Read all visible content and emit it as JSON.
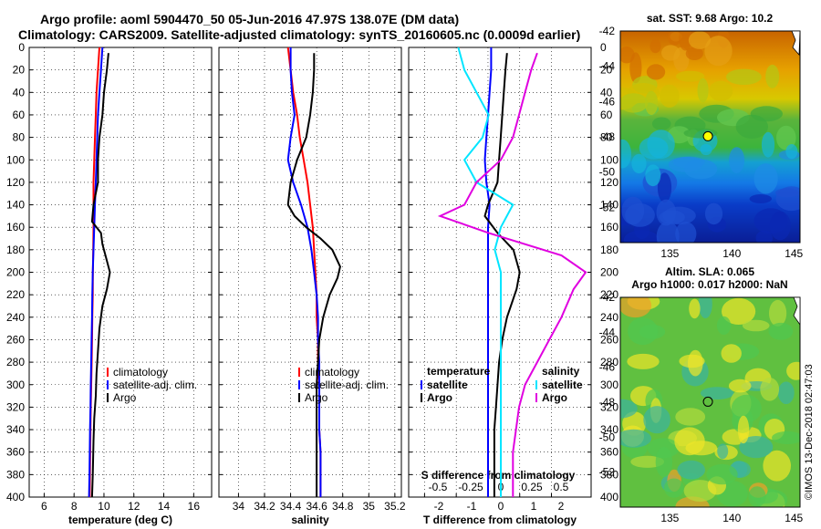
{
  "title": {
    "line1": "Argo profile: aoml 5904470_50 05-Jun-2016 47.97S 138.07E (DM data)",
    "line2": "Climatology: CARS2009. Satellite-adjusted climatology: synTS_20160605.nc (0.0009d earlier)"
  },
  "watermark": "©IMOS 13-Dec-2018 02:47:03",
  "colors": {
    "climatology": "#ff0000",
    "satellite": "#0000ff",
    "argo": "#000000",
    "sat_salinity": "#00e5ff",
    "argo_salinity": "#e000e0"
  },
  "chart_data": [
    {
      "type": "line",
      "title": "temperature",
      "xlabel": "temperature (deg C)",
      "ylabel": "depth",
      "xlim": [
        5,
        17.2
      ],
      "ylim": [
        400,
        0
      ],
      "xticks": [
        "6",
        "8",
        "10",
        "12",
        "14",
        "16"
      ],
      "yticks": [
        "0",
        "20",
        "40",
        "60",
        "80",
        "100",
        "120",
        "140",
        "160",
        "180",
        "200",
        "220",
        "240",
        "260",
        "280",
        "300",
        "320",
        "340",
        "360",
        "380",
        "400"
      ],
      "grid": true,
      "legend": {
        "position": "right",
        "items": [
          "climatology",
          "satellite-adj. clim.",
          "Argo"
        ]
      },
      "series": [
        {
          "name": "climatology",
          "color": "#ff0000",
          "x": [
            9.7,
            9.6,
            9.5,
            9.45,
            9.4,
            9.35,
            9.3,
            9.3,
            9.3,
            9.28,
            9.26,
            9.25,
            9.22,
            9.2,
            9.18,
            9.15,
            9.12,
            9.1,
            9.08,
            9.06,
            9.05
          ],
          "y": [
            0,
            20,
            40,
            60,
            80,
            100,
            120,
            140,
            160,
            180,
            200,
            220,
            240,
            260,
            280,
            300,
            320,
            340,
            360,
            380,
            400
          ]
        },
        {
          "name": "satellite-adj. clim.",
          "color": "#0000ff",
          "x": [
            9.9,
            9.8,
            9.7,
            9.6,
            9.55,
            9.5,
            9.45,
            9.4,
            9.35,
            9.3,
            9.25,
            9.22,
            9.2,
            9.17,
            9.15,
            9.12,
            9.1,
            9.07,
            9.05,
            9.03,
            9.0
          ],
          "y": [
            0,
            20,
            40,
            60,
            80,
            100,
            120,
            140,
            160,
            180,
            200,
            220,
            240,
            260,
            280,
            300,
            320,
            340,
            360,
            380,
            400
          ]
        },
        {
          "name": "Argo",
          "color": "#000000",
          "x": [
            10.3,
            10.2,
            10.0,
            9.9,
            9.7,
            9.6,
            9.6,
            9.3,
            9.2,
            9.8,
            9.9,
            10.1,
            10.4,
            10.2,
            9.9,
            9.7,
            9.6,
            9.5,
            9.45,
            9.35,
            9.3,
            9.25,
            9.2
          ],
          "y": [
            5,
            20,
            40,
            60,
            80,
            100,
            120,
            140,
            155,
            165,
            175,
            185,
            200,
            215,
            230,
            250,
            270,
            290,
            310,
            330,
            350,
            380,
            400
          ]
        }
      ]
    },
    {
      "type": "line",
      "title": "salinity",
      "xlabel": "salinity",
      "ylabel": "depth",
      "xlim": [
        33.85,
        35.25
      ],
      "ylim": [
        400,
        0
      ],
      "xticks": [
        "34",
        "34.2",
        "34.4",
        "34.6",
        "34.8",
        "35",
        "35.2"
      ],
      "grid": true,
      "legend": {
        "position": "right",
        "items": [
          "climatology",
          "satellite-adj. clim.",
          "Argo"
        ]
      },
      "series": [
        {
          "name": "climatology",
          "color": "#ff0000",
          "x": [
            34.38,
            34.4,
            34.42,
            34.45,
            34.47,
            34.5,
            34.53,
            34.55,
            34.57,
            34.58,
            34.59,
            34.6,
            34.6,
            34.61,
            34.61,
            34.62,
            34.62,
            34.62,
            34.63,
            34.63,
            34.63
          ],
          "y": [
            0,
            20,
            40,
            60,
            80,
            100,
            120,
            140,
            160,
            180,
            200,
            220,
            240,
            260,
            280,
            300,
            320,
            340,
            360,
            380,
            400
          ]
        },
        {
          "name": "satellite-adj. clim.",
          "color": "#0000ff",
          "x": [
            34.4,
            34.4,
            34.41,
            34.43,
            34.4,
            34.38,
            34.42,
            34.48,
            34.53,
            34.56,
            34.58,
            34.6,
            34.61,
            34.61,
            34.62,
            34.62,
            34.62,
            34.62,
            34.63,
            34.63,
            34.63
          ],
          "y": [
            0,
            20,
            40,
            60,
            80,
            100,
            120,
            140,
            160,
            180,
            200,
            220,
            240,
            260,
            280,
            300,
            320,
            340,
            360,
            380,
            400
          ]
        },
        {
          "name": "Argo",
          "color": "#000000",
          "x": [
            34.58,
            34.58,
            34.57,
            34.55,
            34.52,
            34.45,
            34.4,
            34.38,
            34.43,
            34.52,
            34.63,
            34.72,
            34.78,
            34.76,
            34.7,
            34.65,
            34.62,
            34.61,
            34.6,
            34.6,
            34.6,
            34.6,
            34.6,
            34.6
          ],
          "y": [
            5,
            20,
            40,
            60,
            80,
            100,
            120,
            140,
            150,
            160,
            170,
            180,
            195,
            205,
            220,
            240,
            260,
            280,
            300,
            320,
            340,
            360,
            380,
            400
          ]
        }
      ]
    },
    {
      "type": "line",
      "title": "difference from climatology",
      "xlabel": "T difference from climatology",
      "xlabel_top": "S difference from climatology",
      "ylabel": "depth",
      "xlim": [
        -2.5,
        3.25
      ],
      "ylim": [
        400,
        0
      ],
      "xticks": [
        "-2",
        "-1",
        "0",
        "1",
        "2"
      ],
      "xticks_top": [
        "-0.5",
        "-0.25",
        "0",
        "0.25",
        "0.5"
      ],
      "grid": true,
      "legend": {
        "position": "right",
        "headers": [
          "temperature",
          "salinity"
        ],
        "items": [
          "satellite",
          "Argo",
          "satellite",
          "Argo"
        ]
      },
      "series": [
        {
          "name": "T satellite",
          "color": "#0000ff",
          "x": [
            0.1,
            0.1,
            0.05,
            0.0,
            -0.05,
            -0.1,
            -0.05,
            0.05,
            0.0,
            0.0
          ],
          "y": [
            0,
            20,
            40,
            60,
            80,
            100,
            120,
            140,
            160,
            400
          ]
        },
        {
          "name": "T Argo",
          "color": "#000000",
          "x": [
            0.6,
            0.55,
            0.5,
            0.45,
            0.4,
            0.35,
            0.3,
            0.0,
            -0.1,
            0.3,
            0.8,
            1.0,
            0.9,
            0.6,
            0.45,
            0.35,
            0.3,
            0.25,
            0.2,
            0.2,
            0.2,
            0.2
          ],
          "y": [
            5,
            20,
            40,
            60,
            80,
            100,
            120,
            140,
            150,
            165,
            180,
            200,
            215,
            240,
            260,
            280,
            300,
            320,
            340,
            360,
            380,
            400
          ]
        },
        {
          "name": "S satellite",
          "color": "#00e5ff",
          "x": [
            -0.35,
            -0.3,
            -0.2,
            -0.1,
            -0.15,
            -0.3,
            -0.2,
            0.1,
            0.0,
            -0.05,
            0.0,
            0.0,
            0.0,
            0.0,
            0.0,
            0.0,
            0.0
          ],
          "y": [
            0,
            20,
            40,
            60,
            80,
            100,
            120,
            140,
            160,
            180,
            200,
            220,
            240,
            260,
            300,
            350,
            400
          ]
        },
        {
          "name": "S Argo",
          "color": "#e000e0",
          "x": [
            0.3,
            0.25,
            0.2,
            0.15,
            0.1,
            0.0,
            -0.2,
            -0.3,
            -0.5,
            -0.1,
            0.5,
            0.7,
            0.6,
            0.5,
            0.4,
            0.3,
            0.2,
            0.15,
            0.1,
            0.1
          ],
          "y": [
            5,
            20,
            40,
            60,
            80,
            100,
            120,
            140,
            150,
            165,
            185,
            200,
            215,
            240,
            260,
            280,
            300,
            320,
            360,
            400
          ]
        }
      ]
    },
    {
      "type": "heatmap",
      "title": "sat. SST: 9.68 Argo: 10.2",
      "xlim": [
        131,
        145.5
      ],
      "ylim": [
        -54,
        -42
      ],
      "xticks": [
        "135",
        "140",
        "145"
      ],
      "yticks": [
        "-42",
        "-44",
        "-46",
        "-48",
        "-50",
        "-52"
      ],
      "marker": {
        "lon": 138.07,
        "lat": -47.97
      }
    },
    {
      "type": "heatmap",
      "title": "Altim. SLA: 0.065",
      "subtitle": "Argo h1000: 0.017 h2000: NaN",
      "xlim": [
        131,
        145.5
      ],
      "ylim": [
        -54,
        -42
      ],
      "xticks": [
        "135",
        "140",
        "145"
      ],
      "yticks": [
        "-42",
        "-44",
        "-46",
        "-48",
        "-50",
        "-52"
      ],
      "marker": {
        "lon": 138.07,
        "lat": -47.97
      }
    }
  ]
}
